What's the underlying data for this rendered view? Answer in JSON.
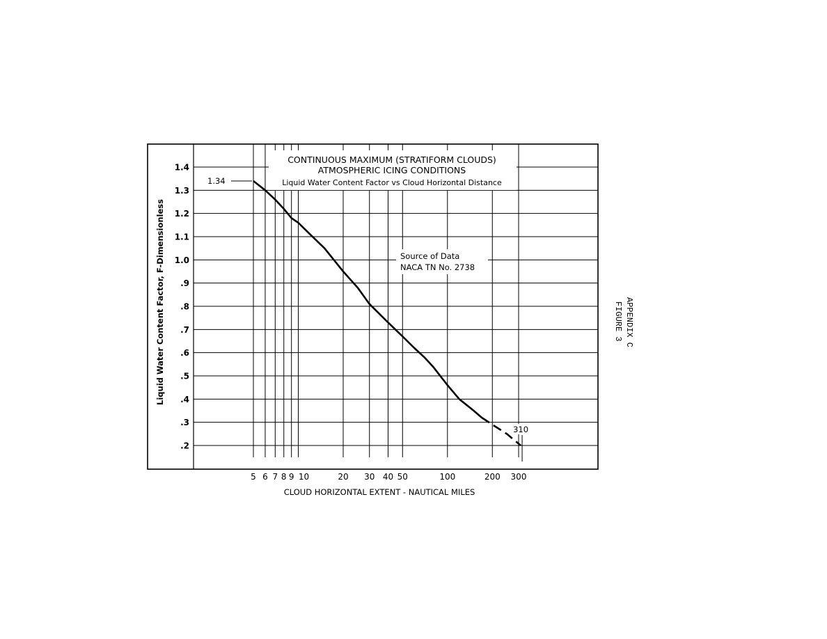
{
  "chart_data": {
    "type": "line",
    "title": [
      "CONTINUOUS MAXIMUM (STRATIFORM CLOUDS)",
      "ATMOSPHERIC ICING CONDITIONS"
    ],
    "subtitle": "Liquid Water Content Factor vs Cloud Horizontal Distance",
    "xlabel": "CLOUD HORIZONTAL EXTENT - NAUTICAL MILES",
    "ylabel": "Liquid Water Content Factor, F-Dimensionless",
    "x_scale": "log",
    "xlim": [
      2,
      1000
    ],
    "ylim": [
      0.1,
      1.5
    ],
    "x_ticks": [
      {
        "value": 5,
        "label": "5"
      },
      {
        "value": 6,
        "label": "6"
      },
      {
        "value": 7,
        "label": "7"
      },
      {
        "value": 8,
        "label": "8"
      },
      {
        "value": 9,
        "label": "9"
      },
      {
        "value": 10,
        "label": "10"
      },
      {
        "value": 20,
        "label": "20"
      },
      {
        "value": 30,
        "label": "30"
      },
      {
        "value": 40,
        "label": "40"
      },
      {
        "value": 50,
        "label": "50"
      },
      {
        "value": 100,
        "label": "100"
      },
      {
        "value": 200,
        "label": "200"
      },
      {
        "value": 300,
        "label": "300"
      }
    ],
    "y_ticks": [
      {
        "value": 0.2,
        "label": ".2"
      },
      {
        "value": 0.3,
        "label": ".3"
      },
      {
        "value": 0.4,
        "label": ".4"
      },
      {
        "value": 0.5,
        "label": ".5"
      },
      {
        "value": 0.6,
        "label": ".6"
      },
      {
        "value": 0.7,
        "label": ".7"
      },
      {
        "value": 0.8,
        "label": ".8"
      },
      {
        "value": 0.9,
        "label": ".9"
      },
      {
        "value": 1.0,
        "label": "1.0"
      },
      {
        "value": 1.1,
        "label": "1.1"
      },
      {
        "value": 1.2,
        "label": "1.2"
      },
      {
        "value": 1.3,
        "label": "1.3"
      },
      {
        "value": 1.4,
        "label": "1.4"
      }
    ],
    "grid": true,
    "series": [
      {
        "style": "solid",
        "x": [
          5,
          6,
          7,
          8,
          9,
          10,
          12,
          15,
          20,
          25,
          30,
          40,
          50,
          60,
          70,
          80,
          100,
          120,
          150,
          170
        ],
        "y": [
          1.34,
          1.3,
          1.26,
          1.22,
          1.18,
          1.16,
          1.11,
          1.05,
          0.95,
          0.88,
          0.81,
          0.73,
          0.67,
          0.62,
          0.58,
          0.54,
          0.46,
          0.4,
          0.35,
          0.32
        ]
      },
      {
        "style": "dashed",
        "x": [
          170,
          200,
          250,
          310
        ],
        "y": [
          0.32,
          0.29,
          0.25,
          0.2
        ]
      }
    ],
    "annotations": [
      {
        "text": "1.34",
        "x": 5,
        "y": 1.34
      },
      {
        "text": "310",
        "x": 310,
        "y": 0.2
      },
      {
        "text": [
          "Source of Data",
          "NACA TN No. 2738"
        ]
      }
    ]
  },
  "side_label": [
    "APPENDIX C",
    "FIGURE 3"
  ]
}
